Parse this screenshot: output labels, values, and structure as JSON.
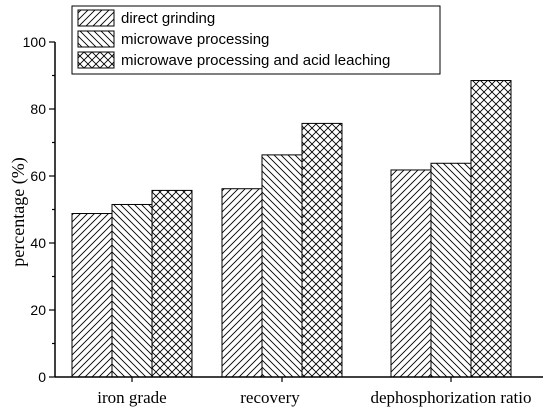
{
  "chart_data": {
    "type": "bar",
    "categories": [
      "iron grade",
      "recovery",
      "dephosphorization ratio"
    ],
    "series": [
      {
        "name": "direct grinding",
        "values": [
          48.8,
          56.2,
          61.8
        ],
        "pattern": "diag-forward"
      },
      {
        "name": "microwave processing",
        "values": [
          51.5,
          66.3,
          63.8
        ],
        "pattern": "diag-backward"
      },
      {
        "name": "microwave processing and acid leaching",
        "values": [
          55.7,
          75.7,
          88.5
        ],
        "pattern": "crosshatch"
      }
    ],
    "title": "",
    "xlabel": "",
    "ylabel": "percentage (%)",
    "ylim": [
      0,
      100
    ],
    "yticks": [
      0,
      20,
      40,
      60,
      80,
      100
    ],
    "grid": false,
    "legend_position": "top-left"
  }
}
